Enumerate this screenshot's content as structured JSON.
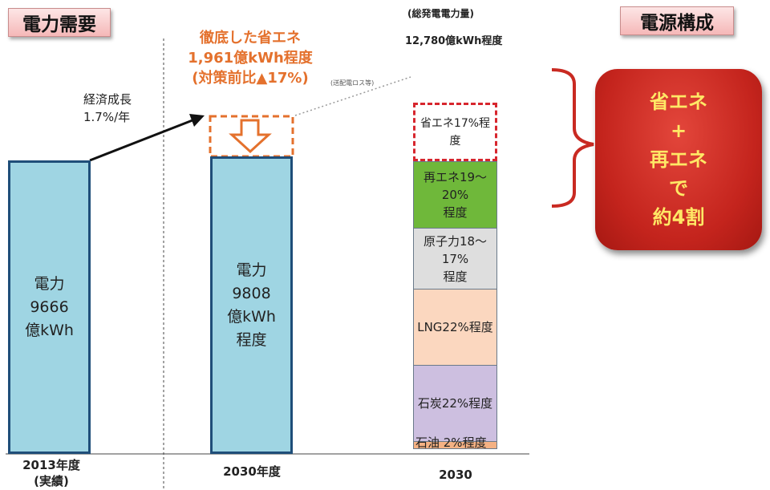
{
  "header": {
    "left_tag": "電力需要",
    "right_tag": "電源構成",
    "total_label": "(総発電電力量)",
    "total_value": "12,780億kWh程度"
  },
  "growth": {
    "line1": "経済成長",
    "line2": "1.7%/年"
  },
  "savings": {
    "line1": "徹底した省エネ",
    "line2": "1,961億kWh程度",
    "line3": "(対策前比▲17%)",
    "note": "(送配電ロス等)"
  },
  "callout": {
    "line1": "省エネ",
    "line2": "+",
    "line3": "再エネ",
    "line4": "で",
    "line5": "約4割"
  },
  "chart_data": [
    {
      "type": "bar",
      "categories": [
        "2013年度\n(実績)",
        "2030年度"
      ],
      "tick_labels": {
        "c2013_l1": "2013年度",
        "c2013_l2": "(実績)",
        "c2030": "2030年度"
      },
      "values": [
        9666,
        9808
      ],
      "unit": "億kWh",
      "bar_labels": {
        "b2013": {
          "l1": "電力",
          "l2": "9666",
          "l3": "億kWh"
        },
        "b2030": {
          "l1": "電力",
          "l2": "9808",
          "l3": "億kWh",
          "l4": "程度"
        }
      },
      "stacked_top": {
        "value": 1961,
        "label": "徹底した省エネ"
      }
    },
    {
      "type": "bar",
      "stacked": true,
      "categories": [
        "2030"
      ],
      "unit": "%",
      "segments": [
        {
          "name": "石油",
          "text": "石油 2%程度",
          "value": 2,
          "color": "#f4b183"
        },
        {
          "name": "石炭",
          "text": "石炭22%程度",
          "value": 22,
          "color": "#cdbfe0"
        },
        {
          "name": "LNG",
          "text": "LNG22%程度",
          "value": 22,
          "color": "#fbd7bf"
        },
        {
          "name": "原子力",
          "text1": "原子力18〜17%",
          "text2": "程度",
          "value": 17.5,
          "color": "#dedede"
        },
        {
          "name": "再エネ",
          "text1": "再エネ19〜20%",
          "text2": "程度",
          "value": 19.5,
          "color": "#6fb83a"
        },
        {
          "name": "省エネ",
          "text": "省エネ17%程度",
          "value": 17,
          "color": "#ffffff"
        }
      ]
    }
  ]
}
